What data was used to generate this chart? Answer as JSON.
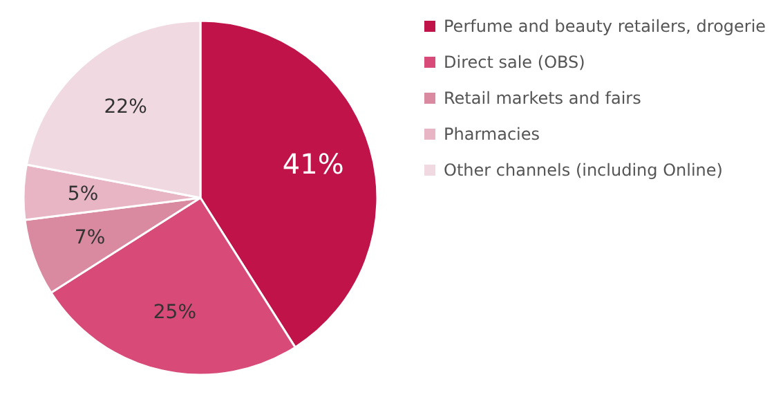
{
  "chart_data": {
    "type": "pie",
    "categories": [
      "Perfume and beauty retailers, drogerie",
      "Direct sale (OBS)",
      "Retail markets and fairs",
      "Pharmacies",
      "Other channels (including Online)"
    ],
    "values": [
      41,
      25,
      7,
      5,
      22
    ],
    "colors": [
      "#c0134a",
      "#d84a78",
      "#d98aa0",
      "#e8b5c5",
      "#f1d9e1"
    ],
    "value_labels": [
      "41%",
      "25%",
      "7%",
      "5%",
      "22%"
    ],
    "legend": "right"
  }
}
